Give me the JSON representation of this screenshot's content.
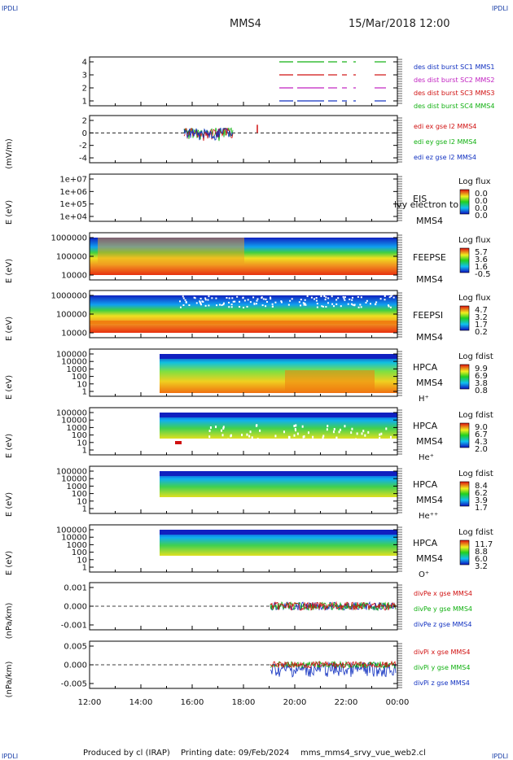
{
  "header": {
    "corner_label": "IPDLI",
    "spacecraft": "MMS4",
    "datetime": "15/Mar/2018 12:00"
  },
  "footer": {
    "produced": "Produced by cl (IRAP)",
    "printed": "Printing date: 09/Feb/2024",
    "file": "mms_mms4_srvy_vue_web2.cl"
  },
  "x_axis": {
    "ticks": [
      "12:00",
      "14:00",
      "16:00",
      "18:00",
      "20:00",
      "22:00",
      "00:00"
    ]
  },
  "panels": [
    {
      "ylabel": "",
      "yticks": [
        "4",
        "3",
        "2",
        "1"
      ],
      "legend": [
        {
          "text": "des dist burst SC1 MMS1",
          "color": "#1030c0"
        },
        {
          "text": "des dist burst SC2 MMS2",
          "color": "#c020c0"
        },
        {
          "text": "des dist burst SC3 MMS3",
          "color": "#d01010"
        },
        {
          "text": "des dist burst SC4 MMS4",
          "color": "#10b010"
        }
      ]
    },
    {
      "ylabel": "(mV/m)",
      "yticks": [
        "2",
        "0",
        "-2",
        "-4"
      ],
      "legend": [
        {
          "text": "edi ex gse l2 MMS4",
          "color": "#d01010"
        },
        {
          "text": "edi ey gse l2 MMS4",
          "color": "#10b010"
        },
        {
          "text": "edi ez gse l2 MMS4",
          "color": "#1030c0"
        }
      ]
    },
    {
      "ylabel": "E (eV)",
      "yticks": [
        "1e+07",
        "1e+06",
        "1e+05",
        "1e+04"
      ],
      "inst": "EIS",
      "sc": "MMS4",
      "overlay": "lvy electron to",
      "cb_title": "Log flux",
      "cb_ticks": [
        "0.0",
        "0.0",
        "0.0",
        "0.0"
      ]
    },
    {
      "ylabel": "E (eV)",
      "yticks": [
        "1000000",
        "100000",
        "10000"
      ],
      "inst": "FEEPSE",
      "sc": "MMS4",
      "cb_title": "Log flux",
      "cb_ticks": [
        "5.7",
        "3.6",
        "1.6",
        "-0.5"
      ]
    },
    {
      "ylabel": "E (eV)",
      "yticks": [
        "1000000",
        "100000",
        "10000"
      ],
      "inst": "FEEPSI",
      "sc": "MMS4",
      "cb_title": "Log flux",
      "cb_ticks": [
        "4.7",
        "3.2",
        "1.7",
        "0.2"
      ]
    },
    {
      "ylabel": "E (eV)",
      "yticks": [
        "100000",
        "10000",
        "1000",
        "100",
        "10",
        "1"
      ],
      "inst": "HPCA",
      "sc": "MMS4",
      "species": "H⁺",
      "cb_title": "Log fdist",
      "cb_ticks": [
        "9.9",
        "6.9",
        "3.8",
        "0.8"
      ]
    },
    {
      "ylabel": "E (eV)",
      "yticks": [
        "100000",
        "10000",
        "1000",
        "100",
        "10",
        "1"
      ],
      "inst": "HPCA",
      "sc": "MMS4",
      "species": "He⁺",
      "cb_title": "Log fdist",
      "cb_ticks": [
        "9.0",
        "6.7",
        "4.3",
        "2.0"
      ]
    },
    {
      "ylabel": "E (eV)",
      "yticks": [
        "100000",
        "10000",
        "1000",
        "100",
        "10",
        "1"
      ],
      "inst": "HPCA",
      "sc": "MMS4",
      "species": "He⁺⁺",
      "cb_title": "Log fdist",
      "cb_ticks": [
        "8.4",
        "6.2",
        "3.9",
        "1.7"
      ]
    },
    {
      "ylabel": "E (eV)",
      "yticks": [
        "100000",
        "10000",
        "1000",
        "100",
        "10",
        "1"
      ],
      "inst": "HPCA",
      "sc": "MMS4",
      "species": "O⁺",
      "cb_title": "Log fdist",
      "cb_ticks": [
        "11.7",
        "8.8",
        "6.0",
        "3.2"
      ]
    },
    {
      "ylabel": "(nPa/km)",
      "yticks": [
        "0.001",
        "0.000",
        "-0.001"
      ],
      "legend": [
        {
          "text": "divPe x gse MMS4",
          "color": "#d01010"
        },
        {
          "text": "divPe y gse MMS4",
          "color": "#10b010"
        },
        {
          "text": "divPe z gse MMS4",
          "color": "#1030c0"
        }
      ]
    },
    {
      "ylabel": "(nPa/km)",
      "yticks": [
        "0.005",
        "0.000",
        "-0.005"
      ],
      "legend": [
        {
          "text": "divPi x gse MMS4",
          "color": "#d01010"
        },
        {
          "text": "divPi y gse MMS4",
          "color": "#10b010"
        },
        {
          "text": "divPi z gse MMS4",
          "color": "#1030c0"
        }
      ]
    }
  ],
  "chart_data": {
    "type": "line",
    "time_range": [
      "12:00",
      "00:00"
    ],
    "colors": {
      "series1": "#1030c0",
      "series2": "#c020c0",
      "series3": "#d01010",
      "series4": "#10b010"
    }
  }
}
